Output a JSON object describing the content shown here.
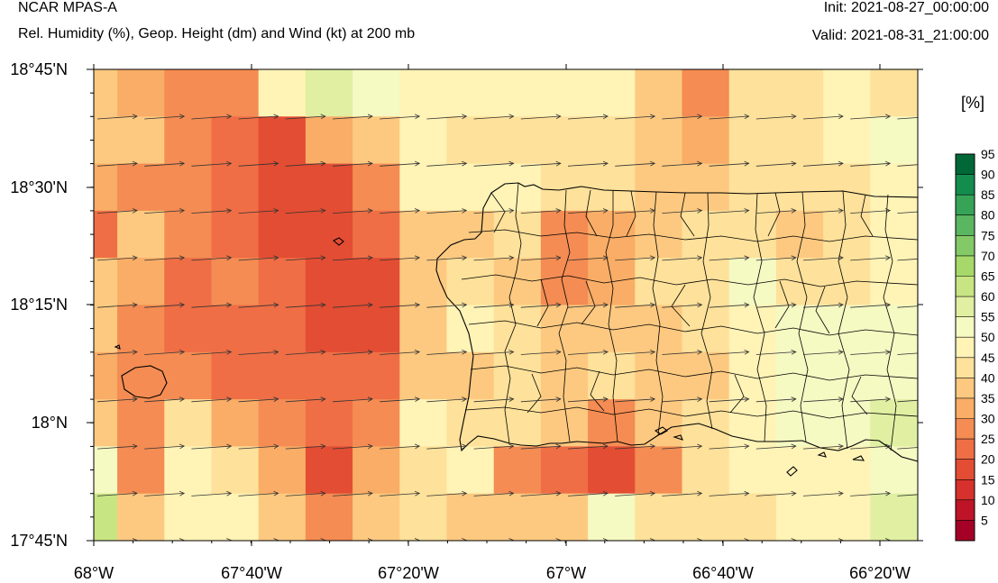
{
  "header": {
    "model": "NCAR MPAS-A",
    "subtitle": "Rel. Humidity (%), Geop. Height (dm) and Wind (kt) at 200 mb",
    "init": "Init: 2021-08-27_00:00:00",
    "valid": "Valid: 2021-08-31_21:00:00"
  },
  "colorbar": {
    "unit_label": "[%]",
    "levels": [
      5,
      10,
      15,
      20,
      25,
      30,
      35,
      40,
      45,
      50,
      55,
      60,
      65,
      70,
      75,
      80,
      85,
      90,
      95
    ],
    "colors": [
      "#a50026",
      "#bf1427",
      "#d6312c",
      "#e34d33",
      "#ef6e45",
      "#f48c53",
      "#f9ad66",
      "#fdc980",
      "#fee19a",
      "#fff3b6",
      "#f5f9c2",
      "#e0efa2",
      "#c8e583",
      "#a6d96a",
      "#83c967",
      "#5ab660",
      "#36a357",
      "#138d4e",
      "#006837"
    ]
  },
  "chart_data": {
    "type": "heatmap",
    "title": "Rel. Humidity (%), Geop. Height (dm) and Wind (kt) at 200 mb",
    "xlim": [
      -68.0,
      -66.2
    ],
    "ylim": [
      17.75,
      18.75
    ],
    "x_ticks": [
      "68°W",
      "67°40'W",
      "67°20'W",
      "67°W",
      "66°40'W",
      "66°20'W"
    ],
    "y_ticks": [
      "18°45'N",
      "18°30'N",
      "18°15'N",
      "18°N",
      "17°45'N"
    ],
    "field": "relative_humidity_pct",
    "grid_values": [
      [
        35,
        30,
        25,
        25,
        45,
        55,
        50,
        45,
        45,
        45,
        45,
        45,
        35,
        25,
        40,
        40,
        45,
        40
      ],
      [
        35,
        35,
        25,
        20,
        15,
        30,
        35,
        45,
        40,
        40,
        40,
        40,
        35,
        30,
        40,
        40,
        45,
        50
      ],
      [
        30,
        25,
        25,
        20,
        15,
        15,
        25,
        45,
        45,
        45,
        40,
        40,
        35,
        35,
        40,
        40,
        40,
        45
      ],
      [
        20,
        35,
        25,
        20,
        15,
        15,
        20,
        35,
        35,
        40,
        25,
        30,
        35,
        40,
        40,
        35,
        40,
        45
      ],
      [
        35,
        30,
        20,
        25,
        20,
        15,
        15,
        35,
        40,
        35,
        25,
        30,
        40,
        40,
        50,
        40,
        40,
        45
      ],
      [
        35,
        25,
        20,
        20,
        20,
        15,
        15,
        35,
        45,
        40,
        35,
        35,
        35,
        40,
        45,
        50,
        50,
        50
      ],
      [
        30,
        25,
        25,
        20,
        20,
        20,
        20,
        35,
        35,
        40,
        35,
        40,
        35,
        35,
        45,
        50,
        50,
        50
      ],
      [
        35,
        25,
        40,
        30,
        25,
        20,
        25,
        45,
        40,
        40,
        35,
        25,
        35,
        40,
        45,
        50,
        50,
        55
      ],
      [
        50,
        25,
        45,
        40,
        30,
        15,
        30,
        40,
        45,
        25,
        20,
        15,
        25,
        40,
        45,
        45,
        45,
        50
      ],
      [
        60,
        35,
        45,
        45,
        35,
        25,
        35,
        40,
        35,
        35,
        35,
        50,
        40,
        40,
        40,
        45,
        45,
        55
      ],
      [
        45,
        40,
        40,
        40,
        40,
        45,
        40,
        35,
        35,
        40,
        40,
        50,
        40,
        35,
        35,
        35,
        40,
        50
      ]
    ],
    "wind_vectors": "westerly (from west to east), roughly uniform ~20 kt"
  }
}
